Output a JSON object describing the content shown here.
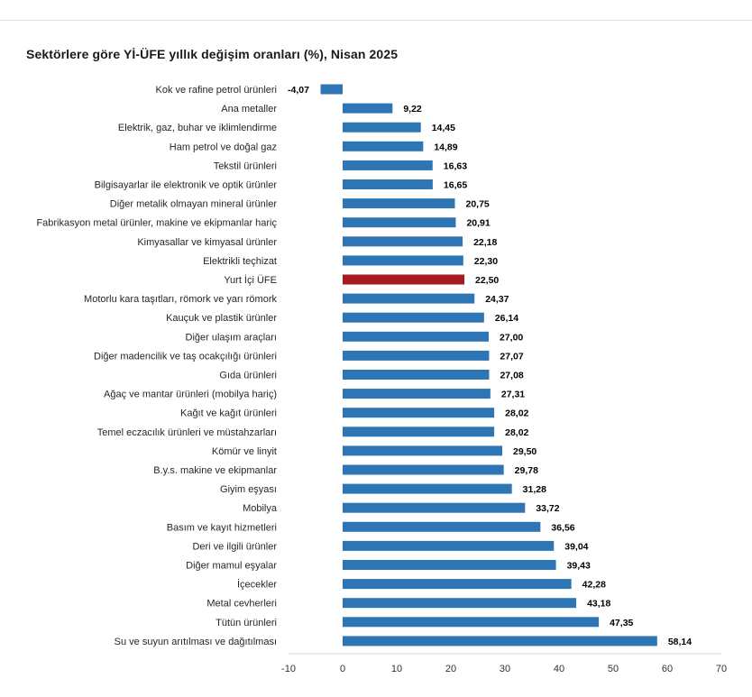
{
  "chart_data": {
    "type": "bar",
    "orientation": "horizontal",
    "title": "Sektörlere göre Yİ-ÜFE yıllık değişim oranları (%), Nisan 2025",
    "xlabel": "",
    "ylabel": "",
    "xlim": [
      -10,
      70
    ],
    "x_ticks": [
      "-10",
      "0",
      "10",
      "20",
      "30",
      "40",
      "50",
      "60",
      "70"
    ],
    "grid": false,
    "legend": "none",
    "colors": {
      "default_bar": "#2e75b6",
      "highlight_bar": "#a61b20"
    },
    "highlight_category": "Yurt İçi ÜFE",
    "categories": [
      "Kok ve rafine petrol ürünleri",
      "Ana metaller",
      "Elektrik, gaz, buhar ve iklimlendirme",
      "Ham petrol ve doğal gaz",
      "Tekstil ürünleri",
      "Bilgisayarlar ile elektronik ve optik ürünler",
      "Diğer metalik olmayan mineral ürünler",
      "Fabrikasyon metal ürünler, makine ve ekipmanlar hariç",
      "Kimyasallar ve kimyasal ürünler",
      "Elektrikli teçhizat",
      "Yurt İçi ÜFE",
      "Motorlu kara taşıtları, römork ve yarı römork",
      "Kauçuk ve plastik ürünler",
      "Diğer ulaşım araçları",
      "Diğer madencilik ve taş ocakçılığı ürünleri",
      "Gıda ürünleri",
      "Ağaç ve mantar ürünleri (mobilya hariç)",
      "Kağıt ve kağıt ürünleri",
      "Temel eczacılık ürünleri ve müstahzarları",
      "Kömür ve linyit",
      "B.y.s. makine ve ekipmanlar",
      "Giyim eşyası",
      "Mobilya",
      "Basım ve kayıt hizmetleri",
      "Deri ve ilgili ürünler",
      "Diğer mamul eşyalar",
      "İçecekler",
      "Metal cevherleri",
      "Tütün ürünleri",
      "Su ve suyun arıtılması ve dağıtılması"
    ],
    "values": [
      -4.07,
      9.22,
      14.45,
      14.89,
      16.63,
      16.65,
      20.75,
      20.91,
      22.18,
      22.3,
      22.5,
      24.37,
      26.14,
      27.0,
      27.07,
      27.08,
      27.31,
      28.02,
      28.02,
      29.5,
      29.78,
      31.28,
      33.72,
      36.56,
      39.04,
      39.43,
      42.28,
      43.18,
      47.35,
      58.14
    ],
    "value_labels": [
      "-4,07",
      "9,22",
      "14,45",
      "14,89",
      "16,63",
      "16,65",
      "20,75",
      "20,91",
      "22,18",
      "22,30",
      "22,50",
      "24,37",
      "26,14",
      "27,00",
      "27,07",
      "27,08",
      "27,31",
      "28,02",
      "28,02",
      "29,50",
      "29,78",
      "31,28",
      "33,72",
      "36,56",
      "39,04",
      "39,43",
      "42,28",
      "43,18",
      "47,35",
      "58,14"
    ]
  }
}
